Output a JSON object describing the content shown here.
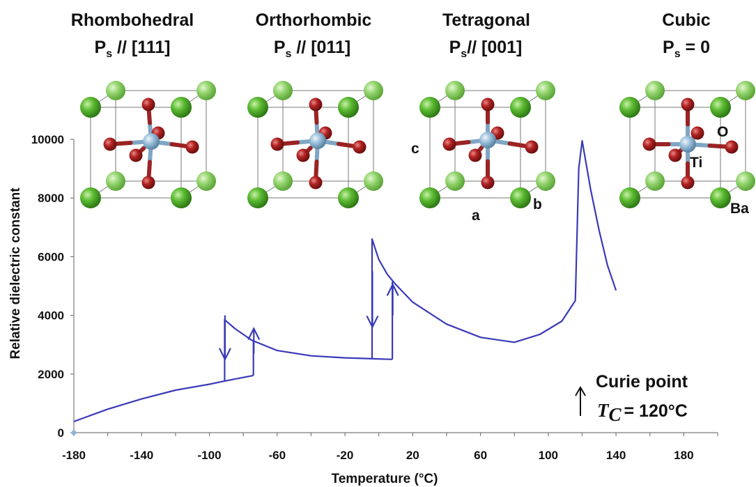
{
  "phases": [
    {
      "name": "Rhombohedral",
      "pol_prefix": "P",
      "pol_sub": "s",
      "pol_rest": " // [111]"
    },
    {
      "name": "Orthorhombic",
      "pol_prefix": "P",
      "pol_sub": "s",
      "pol_rest": " // [011]"
    },
    {
      "name": "Tetragonal",
      "pol_prefix": "P",
      "pol_sub": "s",
      "pol_rest": "// [001]"
    },
    {
      "name": "Cubic",
      "pol_prefix": "P",
      "pol_sub": "s",
      "pol_rest": " = 0"
    }
  ],
  "lattice_labels": {
    "c": "c",
    "a": "a",
    "b": "b",
    "O": "O",
    "Ti": "Ti",
    "Ba": "Ba"
  },
  "curie": {
    "label": "Curie point",
    "symbol": "T",
    "symbol_sub": "C",
    "value": "= 120°C"
  },
  "colors": {
    "curve": "#3a3ab8",
    "ba_atom": "#4fae2a",
    "ti_atom": "#8fb5d2",
    "o_atom": "#a51e1e",
    "cell_edge": "#777777"
  },
  "chart_data": {
    "type": "line",
    "title": "",
    "xlabel": "Temperature (°C)",
    "ylabel": "Relative dielectric constant",
    "xlim": [
      -180,
      200
    ],
    "ylim": [
      0,
      10000
    ],
    "x_ticks": [
      -180,
      -140,
      -100,
      -60,
      -20,
      20,
      60,
      100,
      140,
      180
    ],
    "y_ticks": [
      0,
      2000,
      4000,
      6000,
      8000,
      10000
    ],
    "grid": false,
    "legend": "none",
    "series": [
      {
        "values_xy": [
          [
            -180,
            380
          ],
          [
            -160,
            800
          ],
          [
            -140,
            1150
          ],
          [
            -120,
            1450
          ],
          [
            -100,
            1650
          ],
          [
            -91,
            1760
          ],
          [
            -91,
            3850
          ],
          [
            -85,
            3550
          ],
          [
            -75,
            3150
          ],
          [
            -60,
            2800
          ],
          [
            -40,
            2620
          ],
          [
            -20,
            2550
          ],
          [
            -4,
            2520
          ],
          [
            -4,
            6600
          ],
          [
            0,
            5900
          ],
          [
            5,
            5400
          ],
          [
            10,
            5050
          ],
          [
            20,
            4450
          ],
          [
            40,
            3700
          ],
          [
            60,
            3250
          ],
          [
            80,
            3080
          ],
          [
            95,
            3350
          ],
          [
            108,
            3800
          ],
          [
            116,
            4500
          ],
          [
            116,
            4500
          ],
          [
            118,
            9000
          ],
          [
            120,
            9950
          ],
          [
            125,
            8300
          ],
          [
            130,
            6900
          ],
          [
            135,
            5700
          ],
          [
            140,
            4850
          ]
        ]
      },
      {
        "values_xy": [
          [
            -74,
            1950
          ],
          [
            -91,
            1760
          ]
        ]
      },
      {
        "values_xy": [
          [
            -74,
            1950
          ],
          [
            -74,
            3150
          ]
        ]
      },
      {
        "values_xy": [
          [
            8,
            2500
          ],
          [
            -4,
            2520
          ]
        ]
      },
      {
        "values_xy": [
          [
            8,
            2500
          ],
          [
            8,
            5150
          ]
        ]
      }
    ],
    "arrows": [
      {
        "x": -91,
        "from": 4000,
        "to": 2500,
        "direction": "down"
      },
      {
        "x": -74,
        "from": 2700,
        "to": 3550,
        "direction": "up"
      },
      {
        "x": -4,
        "from": 5500,
        "to": 3600,
        "direction": "down"
      },
      {
        "x": 8,
        "from": 4000,
        "to": 5050,
        "direction": "up"
      }
    ]
  }
}
